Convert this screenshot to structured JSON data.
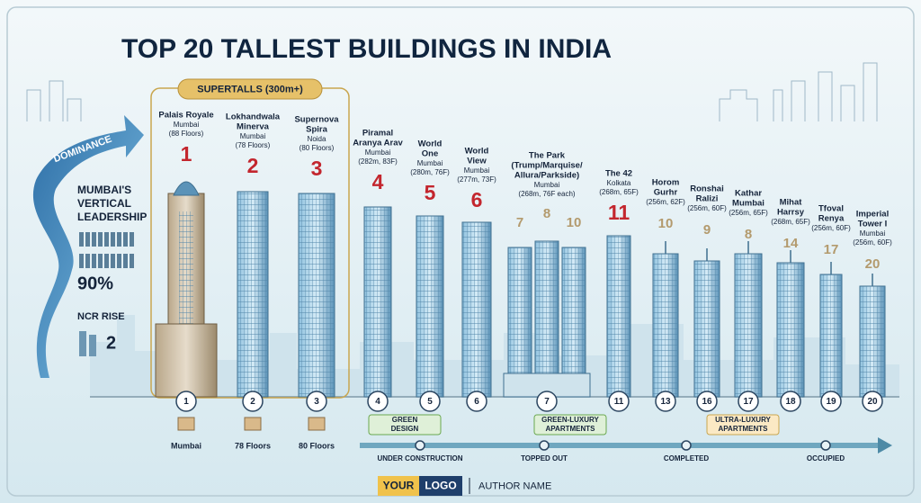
{
  "header": {
    "title": "TOP 20 TALLEST BUILDINGS IN INDIA",
    "badge": "SUPERTALLS (300m+)"
  },
  "sidebar": {
    "ribbon": "DOMINANCE",
    "heading": [
      "MUMBAI'S",
      "VERTICAL",
      "LEADERSHIP"
    ],
    "share": "90%",
    "ncr_label": "NCR RISE",
    "ncr_count": "2"
  },
  "buildings": [
    {
      "ranks": [
        "1"
      ],
      "name": [
        "Palais Royale"
      ],
      "city": "Mumbai",
      "detail": "(88 Floors)",
      "marker": "1"
    },
    {
      "ranks": [
        "2"
      ],
      "name": [
        "Lokhandwala",
        "Minerva"
      ],
      "city": "Mumbai",
      "detail": "(78 Floors)",
      "marker": "2"
    },
    {
      "ranks": [
        "3"
      ],
      "name": [
        "Supernova",
        "Spira"
      ],
      "city": "Noida",
      "detail": "(80 Floors)",
      "marker": "3"
    },
    {
      "ranks": [
        "4"
      ],
      "name": [
        "Piramal",
        "Aranya Arav"
      ],
      "city": "Mumbai",
      "detail": "(282m, 83F)",
      "marker": "4"
    },
    {
      "ranks": [
        "5"
      ],
      "name": [
        "World",
        "One"
      ],
      "city": "Mumbai",
      "detail": "(280m, 76F)",
      "marker": "5"
    },
    {
      "ranks": [
        "6"
      ],
      "name": [
        "World",
        "View"
      ],
      "city": "Mumbai",
      "detail": "(277m, 73F)",
      "marker": "6"
    },
    {
      "ranks": [
        "7",
        "8",
        "10"
      ],
      "name": [
        "The Park",
        "(Trump/Marquise/",
        "Allura/Parkside)"
      ],
      "city": "Mumbai",
      "detail": "(268m, 76F each)",
      "marker": "7"
    },
    {
      "ranks": [
        "11"
      ],
      "name": [
        "The 42"
      ],
      "city": "Kolkata",
      "detail": "(268m, 65F)",
      "marker": "11"
    },
    {
      "ranks": [
        "10"
      ],
      "name": [
        "Horom",
        "Gurhr"
      ],
      "city": "",
      "detail": "(256m, 62F)",
      "marker": "13"
    },
    {
      "ranks": [
        "9"
      ],
      "name": [
        "Ronshai",
        "Ralizi"
      ],
      "city": "",
      "detail": "(256m, 60F)",
      "marker": "16"
    },
    {
      "ranks": [
        "8"
      ],
      "name": [
        "Kathar",
        "Mumbai"
      ],
      "city": "",
      "detail": "(256m, 65F)",
      "marker": "17"
    },
    {
      "ranks": [
        "14"
      ],
      "name": [
        "Mihat",
        "Harrsy"
      ],
      "city": "",
      "detail": "(268m, 65F)",
      "marker": "18"
    },
    {
      "ranks": [
        "17"
      ],
      "name": [
        "Tfoval",
        "Renya"
      ],
      "city": "",
      "detail": "(256m, 60F)",
      "marker": "19"
    },
    {
      "ranks": [
        "20"
      ],
      "name": [
        "Imperial",
        "Tower I"
      ],
      "city": "Mumbai",
      "detail": "(256m, 60F)",
      "marker": "20"
    }
  ],
  "footnotes": [
    "Mumbai",
    "78 Floors",
    "80 Floors"
  ],
  "tags": [
    [
      "GREEN",
      "DESIGN"
    ],
    [
      "GREEN-LUXURY",
      "APARTMENTS"
    ],
    [
      "ULTRA-LUXURY",
      "APARTMENTS"
    ]
  ],
  "timeline": [
    "UNDER CONSTRUCTION",
    "TOPPED OUT",
    "COMPLETED",
    "OCCUPIED"
  ],
  "footer": {
    "logo_left": "YOUR",
    "logo_right": "LOGO",
    "author": "AUTHOR NAME"
  }
}
